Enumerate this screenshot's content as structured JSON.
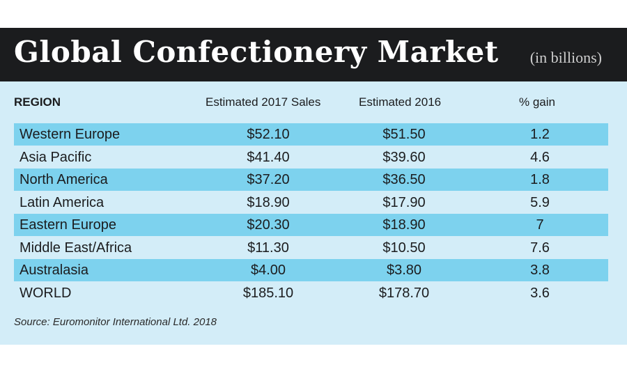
{
  "header": {
    "title": "Global Confectionery Market",
    "subtitle": "(in billions)"
  },
  "table": {
    "columns": [
      "REGION",
      "Estimated 2017 Sales",
      "Estimated 2016",
      "% gain"
    ],
    "rows": [
      [
        "Western Europe",
        "$52.10",
        "$51.50",
        "1.2"
      ],
      [
        "Asia Pacific",
        "$41.40",
        "$39.60",
        "4.6"
      ],
      [
        "North America",
        "$37.20",
        "$36.50",
        "1.8"
      ],
      [
        "Latin America",
        "$18.90",
        "$17.90",
        "5.9"
      ],
      [
        "Eastern Europe",
        "$20.30",
        "$18.90",
        "7"
      ],
      [
        "Middle East/Africa",
        "$11.30",
        "$10.50",
        "7.6"
      ],
      [
        "Australasia",
        "$4.00",
        "$3.80",
        "3.8"
      ],
      [
        "WORLD",
        "$185.10",
        "$178.70",
        "3.6"
      ]
    ]
  },
  "source": "Source: Euromonitor International Ltd. 2018"
}
